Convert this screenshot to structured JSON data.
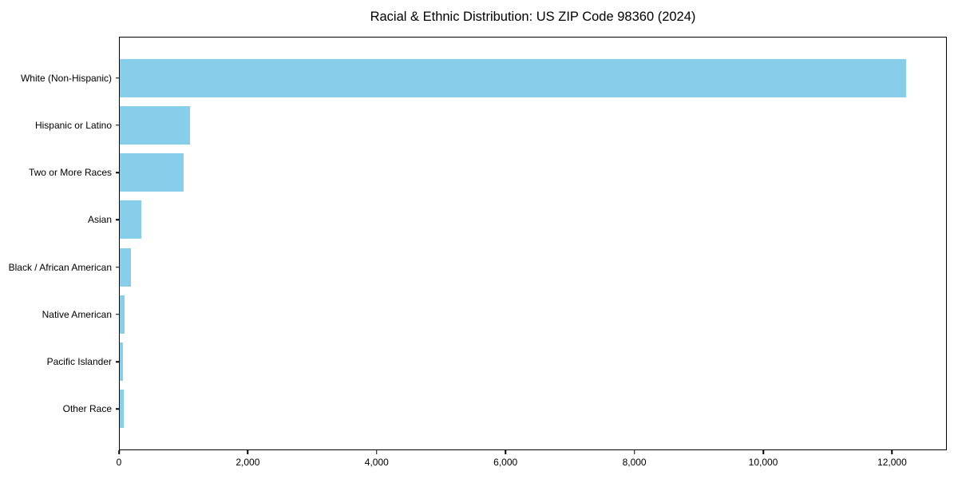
{
  "chart_data": {
    "type": "bar",
    "orientation": "horizontal",
    "title": "Racial & Ethnic Distribution: US ZIP Code 98360 (2024)",
    "categories": [
      "White (Non-Hispanic)",
      "Hispanic or Latino",
      "Two or More Races",
      "Asian",
      "Black / African American",
      "Native American",
      "Pacific Islander",
      "Other Race"
    ],
    "values": [
      12230,
      1090,
      990,
      340,
      180,
      70,
      55,
      60
    ],
    "xlabel": "",
    "ylabel": "",
    "xlim": [
      0,
      12850
    ],
    "xticks": [
      0,
      2000,
      4000,
      6000,
      8000,
      10000,
      12000
    ],
    "xtick_labels": [
      "0",
      "2,000",
      "4,000",
      "6,000",
      "8,000",
      "10,000",
      "12,000"
    ],
    "bar_color": "#87CEEB",
    "grid": false,
    "legend": "none",
    "spines": "full-box"
  }
}
